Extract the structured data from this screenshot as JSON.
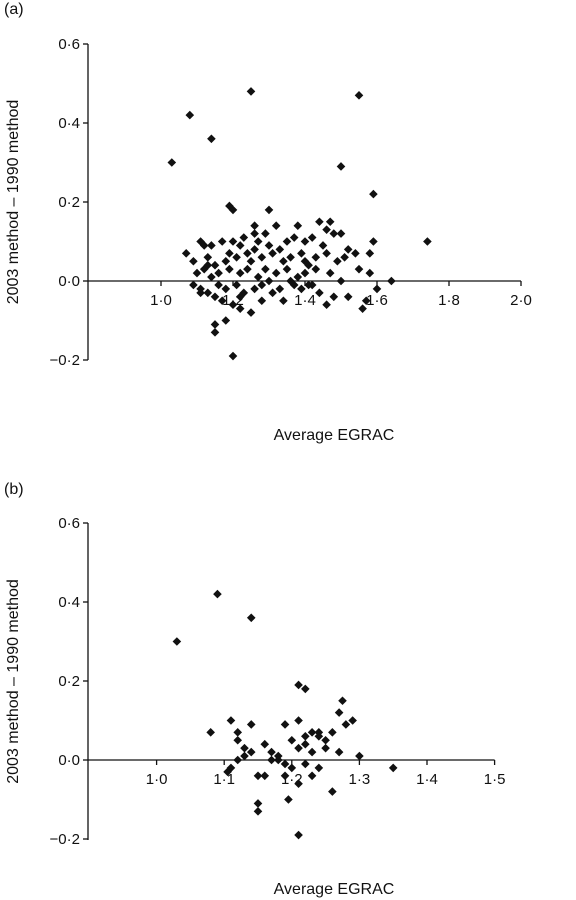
{
  "chart_data": [
    {
      "type": "scatter",
      "panel_label": "(a)",
      "xlabel": "Average EGRAC",
      "ylabel": "2003 method – 1990 method",
      "xlim": [
        0.8,
        2.0
      ],
      "ylim": [
        -0.2,
        0.6
      ],
      "x_ticks": [
        "1·0",
        "1·2",
        "1·4",
        "1·6",
        "1·8",
        "2·0"
      ],
      "y_ticks": [
        "−0·2",
        "0·0",
        "0·2",
        "0·4",
        "0·6"
      ],
      "grid": false,
      "marker": "diamond",
      "points": [
        [
          1.03,
          0.3
        ],
        [
          1.08,
          0.42
        ],
        [
          1.14,
          0.36
        ],
        [
          1.25,
          0.48
        ],
        [
          1.55,
          0.47
        ],
        [
          1.5,
          0.29
        ],
        [
          1.59,
          0.22
        ],
        [
          1.19,
          0.19
        ],
        [
          1.2,
          0.18
        ],
        [
          1.3,
          0.18
        ],
        [
          1.26,
          0.14
        ],
        [
          1.29,
          0.12
        ],
        [
          1.38,
          0.14
        ],
        [
          1.44,
          0.15
        ],
        [
          1.47,
          0.15
        ],
        [
          1.46,
          0.13
        ],
        [
          1.5,
          0.12
        ],
        [
          1.32,
          0.14
        ],
        [
          1.23,
          0.11
        ],
        [
          1.17,
          0.1
        ],
        [
          1.11,
          0.1
        ],
        [
          1.12,
          0.09
        ],
        [
          1.14,
          0.09
        ],
        [
          1.2,
          0.1
        ],
        [
          1.22,
          0.09
        ],
        [
          1.26,
          0.08
        ],
        [
          1.27,
          0.1
        ],
        [
          1.3,
          0.09
        ],
        [
          1.33,
          0.08
        ],
        [
          1.35,
          0.1
        ],
        [
          1.37,
          0.11
        ],
        [
          1.4,
          0.1
        ],
        [
          1.42,
          0.11
        ],
        [
          1.45,
          0.09
        ],
        [
          1.48,
          0.12
        ],
        [
          1.52,
          0.08
        ],
        [
          1.59,
          0.1
        ],
        [
          1.74,
          0.1
        ],
        [
          1.07,
          0.07
        ],
        [
          1.09,
          0.05
        ],
        [
          1.13,
          0.06
        ],
        [
          1.15,
          0.04
        ],
        [
          1.18,
          0.05
        ],
        [
          1.19,
          0.07
        ],
        [
          1.21,
          0.06
        ],
        [
          1.24,
          0.07
        ],
        [
          1.25,
          0.05
        ],
        [
          1.28,
          0.06
        ],
        [
          1.31,
          0.07
        ],
        [
          1.34,
          0.05
        ],
        [
          1.36,
          0.06
        ],
        [
          1.39,
          0.07
        ],
        [
          1.41,
          0.04
        ],
        [
          1.43,
          0.06
        ],
        [
          1.46,
          0.07
        ],
        [
          1.49,
          0.05
        ],
        [
          1.51,
          0.06
        ],
        [
          1.54,
          0.07
        ],
        [
          1.58,
          0.07
        ],
        [
          1.1,
          0.02
        ],
        [
          1.12,
          0.03
        ],
        [
          1.14,
          0.01
        ],
        [
          1.16,
          0.02
        ],
        [
          1.19,
          0.03
        ],
        [
          1.22,
          0.02
        ],
        [
          1.24,
          0.03
        ],
        [
          1.27,
          0.01
        ],
        [
          1.29,
          0.03
        ],
        [
          1.32,
          0.02
        ],
        [
          1.35,
          0.03
        ],
        [
          1.38,
          0.01
        ],
        [
          1.4,
          0.02
        ],
        [
          1.43,
          0.03
        ],
        [
          1.47,
          0.02
        ],
        [
          1.55,
          0.03
        ],
        [
          1.58,
          0.02
        ],
        [
          1.09,
          -0.01
        ],
        [
          1.11,
          -0.02
        ],
        [
          1.13,
          -0.03
        ],
        [
          1.16,
          -0.01
        ],
        [
          1.18,
          -0.02
        ],
        [
          1.21,
          -0.01
        ],
        [
          1.23,
          -0.03
        ],
        [
          1.26,
          -0.02
        ],
        [
          1.28,
          -0.01
        ],
        [
          1.31,
          -0.03
        ],
        [
          1.33,
          -0.02
        ],
        [
          1.37,
          -0.01
        ],
        [
          1.39,
          -0.02
        ],
        [
          1.41,
          -0.01
        ],
        [
          1.44,
          -0.03
        ],
        [
          1.48,
          -0.04
        ],
        [
          1.52,
          -0.04
        ],
        [
          1.57,
          -0.05
        ],
        [
          1.6,
          -0.02
        ],
        [
          1.64,
          0.0
        ],
        [
          1.15,
          -0.04
        ],
        [
          1.17,
          -0.05
        ],
        [
          1.2,
          -0.06
        ],
        [
          1.22,
          -0.04
        ],
        [
          1.34,
          -0.05
        ],
        [
          1.46,
          -0.06
        ],
        [
          1.56,
          -0.07
        ],
        [
          1.15,
          -0.11
        ],
        [
          1.15,
          -0.13
        ],
        [
          1.18,
          -0.1
        ],
        [
          1.22,
          -0.07
        ],
        [
          1.25,
          -0.08
        ],
        [
          1.2,
          -0.19
        ],
        [
          1.28,
          -0.05
        ],
        [
          1.3,
          0.0
        ],
        [
          1.42,
          -0.01
        ],
        [
          1.36,
          0.0
        ],
        [
          1.5,
          0.0
        ],
        [
          1.11,
          -0.03
        ],
        [
          1.4,
          0.05
        ],
        [
          1.13,
          0.04
        ],
        [
          1.26,
          0.12
        ]
      ]
    },
    {
      "type": "scatter",
      "panel_label": "(b)",
      "xlabel": "Average EGRAC",
      "ylabel": "2003 method – 1990 method",
      "xlim": [
        0.9,
        1.5
      ],
      "ylim": [
        -0.2,
        0.6
      ],
      "x_ticks": [
        "1·0",
        "1·1",
        "1·2",
        "1·3",
        "1·4",
        "1·5"
      ],
      "y_ticks": [
        "−0·2",
        "0·0",
        "0·2",
        "0·4",
        "0·6"
      ],
      "grid": false,
      "marker": "diamond",
      "points": [
        [
          1.03,
          0.3
        ],
        [
          1.09,
          0.42
        ],
        [
          1.14,
          0.36
        ],
        [
          1.21,
          0.19
        ],
        [
          1.22,
          0.18
        ],
        [
          1.275,
          0.15
        ],
        [
          1.27,
          0.12
        ],
        [
          1.29,
          0.1
        ],
        [
          1.11,
          0.1
        ],
        [
          1.14,
          0.09
        ],
        [
          1.19,
          0.09
        ],
        [
          1.21,
          0.1
        ],
        [
          1.24,
          0.07
        ],
        [
          1.26,
          0.07
        ],
        [
          1.28,
          0.09
        ],
        [
          1.08,
          0.07
        ],
        [
          1.12,
          0.07
        ],
        [
          1.2,
          0.05
        ],
        [
          1.22,
          0.06
        ],
        [
          1.23,
          0.07
        ],
        [
          1.25,
          0.05
        ],
        [
          1.12,
          0.05
        ],
        [
          1.13,
          0.03
        ],
        [
          1.14,
          0.02
        ],
        [
          1.16,
          0.04
        ],
        [
          1.17,
          0.02
        ],
        [
          1.18,
          0.01
        ],
        [
          1.21,
          0.03
        ],
        [
          1.22,
          0.04
        ],
        [
          1.23,
          0.02
        ],
        [
          1.25,
          0.03
        ],
        [
          1.3,
          0.01
        ],
        [
          1.12,
          0.0
        ],
        [
          1.13,
          0.01
        ],
        [
          1.18,
          0.0
        ],
        [
          1.19,
          -0.01
        ],
        [
          1.2,
          -0.02
        ],
        [
          1.22,
          -0.01
        ],
        [
          1.24,
          -0.02
        ],
        [
          1.11,
          -0.02
        ],
        [
          1.105,
          -0.03
        ],
        [
          1.15,
          -0.04
        ],
        [
          1.16,
          -0.04
        ],
        [
          1.19,
          -0.04
        ],
        [
          1.35,
          -0.02
        ],
        [
          1.26,
          -0.08
        ],
        [
          1.23,
          -0.04
        ],
        [
          1.15,
          -0.11
        ],
        [
          1.15,
          -0.13
        ],
        [
          1.195,
          -0.1
        ],
        [
          1.21,
          -0.06
        ],
        [
          1.21,
          -0.19
        ],
        [
          1.17,
          0.0
        ],
        [
          1.24,
          0.06
        ],
        [
          1.27,
          0.02
        ]
      ]
    }
  ]
}
